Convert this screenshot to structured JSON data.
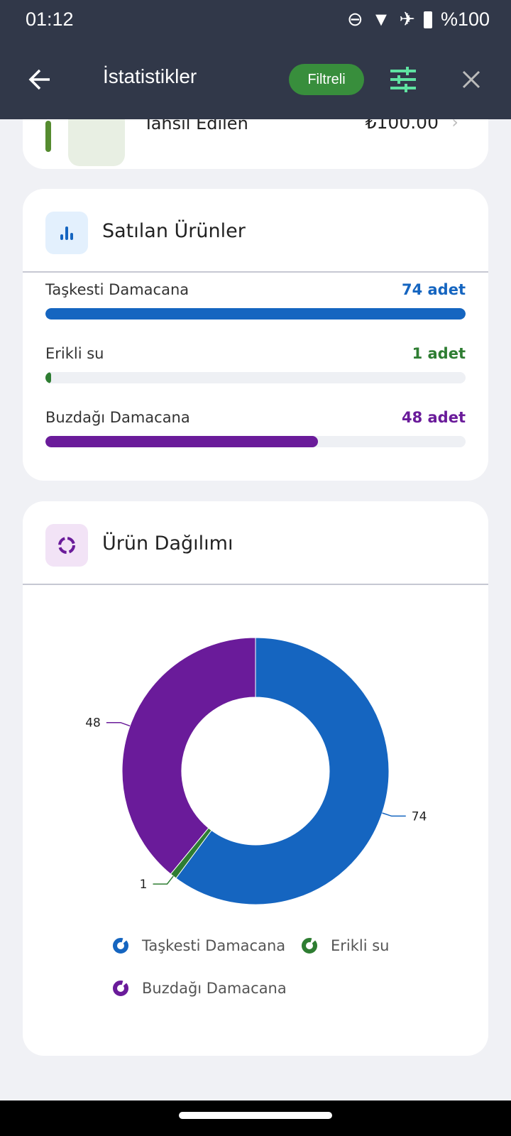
{
  "status": {
    "time": "01:12",
    "battery": "%100"
  },
  "appbar": {
    "title": "İstatistikler",
    "filter_badge": "Filtreli"
  },
  "collected": {
    "label": "Tahsil Edilen",
    "amount": "₺100.00"
  },
  "sold": {
    "title": "Satılan Ürünler",
    "items": [
      {
        "name": "Taşkesti Damacana",
        "value": "74 adet",
        "fraction": 1.0,
        "color": "#1565c0"
      },
      {
        "name": "Erikli su",
        "value": "1 adet",
        "fraction": 0.0135,
        "color": "#2e7d32"
      },
      {
        "name": "Buzdağı Damacana",
        "value": "48 adet",
        "fraction": 0.6486,
        "color": "#6a1b9a"
      }
    ]
  },
  "distribution": {
    "title": "Ürün Dağılımı"
  },
  "chart_data": {
    "type": "pie",
    "donut": true,
    "categories": [
      "Taşkesti Damacana",
      "Erikli su",
      "Buzdağı Damacana"
    ],
    "values": [
      74,
      1,
      48
    ],
    "data_labels": [
      "74",
      "1",
      "48"
    ],
    "colors": [
      "#1565c0",
      "#2e7d32",
      "#6a1b9a"
    ],
    "legend": "bottom"
  }
}
